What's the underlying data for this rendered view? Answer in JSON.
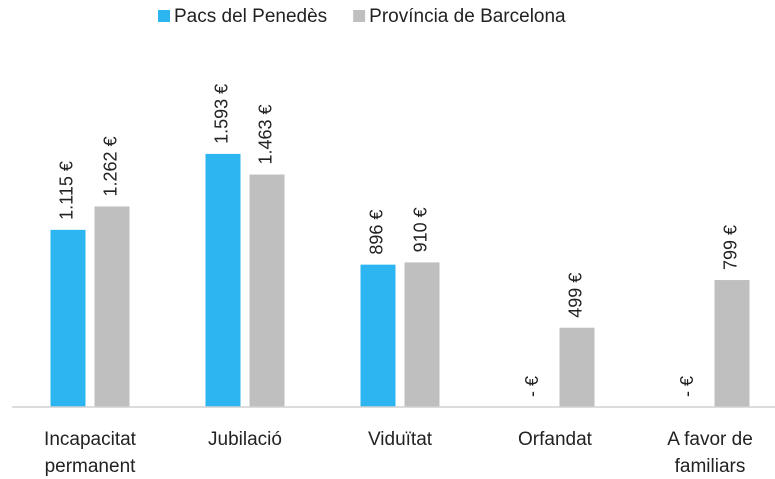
{
  "chart_data": {
    "type": "bar",
    "categories": [
      "Incapacitat permanent",
      "Jubilació",
      "Viduïtat",
      "Orfandat",
      "A favor de familiars"
    ],
    "series": [
      {
        "name": "Pacs del Penedès",
        "color": "#2cb5f0",
        "values": [
          1115,
          1593,
          896,
          0,
          0
        ],
        "value_labels": [
          "1.115 €",
          "1.593 €",
          "896 €",
          "- €",
          "- €"
        ]
      },
      {
        "name": "Província de Barcelona",
        "color": "#bfbfbf",
        "values": [
          1262,
          1463,
          910,
          499,
          799
        ],
        "value_labels": [
          "1.262 €",
          "1.463 €",
          "910 €",
          "499 €",
          "799 €"
        ]
      }
    ],
    "ylim": [
      0,
      1800
    ],
    "legend": "top"
  }
}
